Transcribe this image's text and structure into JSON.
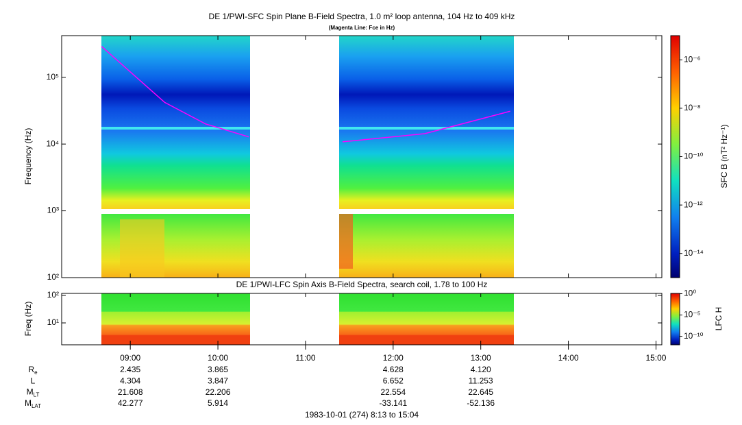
{
  "chart_data": {
    "type": "spectrogram",
    "title": "DE 1/PWI-SFC  Spin Plane B-Field Spectra, 1.0 m² loop antenna, 104 Hz to 409 kHz",
    "subtitle": "(Magenta Line: Fce in Hz)",
    "ylabel": "Frequency (Hz)",
    "yscale": "log",
    "ylim": [
      100,
      420000
    ],
    "yticks": [
      {
        "value": 100,
        "label": "10²"
      },
      {
        "value": 1000,
        "label": "10³"
      },
      {
        "value": 10000,
        "label": "10⁴"
      },
      {
        "value": 100000,
        "label": "10⁵"
      }
    ],
    "xlim": [
      8.2167,
      15.0667
    ],
    "xticks": [
      {
        "value": 9,
        "label": "09:00"
      },
      {
        "value": 10,
        "label": "10:00"
      },
      {
        "value": 11,
        "label": "11:00"
      },
      {
        "value": 12,
        "label": "12:00"
      },
      {
        "value": 13,
        "label": "13:00"
      },
      {
        "value": 14,
        "label": "14:00"
      },
      {
        "value": 15,
        "label": "15:00"
      }
    ],
    "series": [
      {
        "name": "Fce",
        "color": "#ff00ff",
        "x": [
          8.672,
          9.393,
          9.86,
          10.353,
          10.9,
          11.422,
          12.36,
          13.336
        ],
        "values": [
          290000,
          42000,
          20000,
          12800,
          null,
          10800,
          14300,
          31000
        ]
      }
    ],
    "colorbar": {
      "label": "SFC B (nT² Hz⁻¹)",
      "scale": "log",
      "lim": [
        1e-15,
        1e-05
      ],
      "ticks": [
        {
          "value": 1e-06,
          "label": "10⁻⁶"
        },
        {
          "value": 1e-08,
          "label": "10⁻⁸"
        },
        {
          "value": 1e-10,
          "label": "10⁻¹⁰"
        },
        {
          "value": 1e-12,
          "label": "10⁻¹²"
        },
        {
          "value": 1e-14,
          "label": "10⁻¹⁴"
        }
      ]
    },
    "panel2": {
      "title": "DE 1/PWI-LFC  Spin Axis B-Field Spectra, search coil, 1.78 to 100 Hz",
      "ylabel": "Freq (Hz)",
      "yscale": "log",
      "ylim": [
        1.6,
        118
      ],
      "yticks": [
        {
          "value": 10,
          "label": "10¹"
        },
        {
          "value": 100,
          "label": "10²"
        }
      ],
      "colorbar": {
        "label": "LFC H",
        "scale": "log",
        "lim": [
          1e-12,
          1.2
        ],
        "ticks": [
          {
            "value": 1,
            "label": "10⁰"
          },
          {
            "value": 1e-05,
            "label": "10⁻⁵"
          },
          {
            "value": 1e-10,
            "label": "10⁻¹⁰"
          }
        ]
      }
    },
    "ephemeris": [
      {
        "name": "R",
        "sub": "e",
        "values": [
          "2.435",
          "3.865",
          "4.628",
          "4.120"
        ]
      },
      {
        "name": "L",
        "sub": "",
        "values": [
          "4.304",
          "3.847",
          "6.652",
          "11.253"
        ]
      },
      {
        "name": "M",
        "sub": "LT",
        "values": [
          "21.608",
          "22.206",
          "22.554",
          "22.645"
        ]
      },
      {
        "name": "M",
        "sub": "LAT",
        "values": [
          "42.277",
          "5.914",
          "-33.141",
          "-52.136"
        ]
      }
    ],
    "footer": "1983-10-01 (274) 8:13 to 15:04"
  }
}
